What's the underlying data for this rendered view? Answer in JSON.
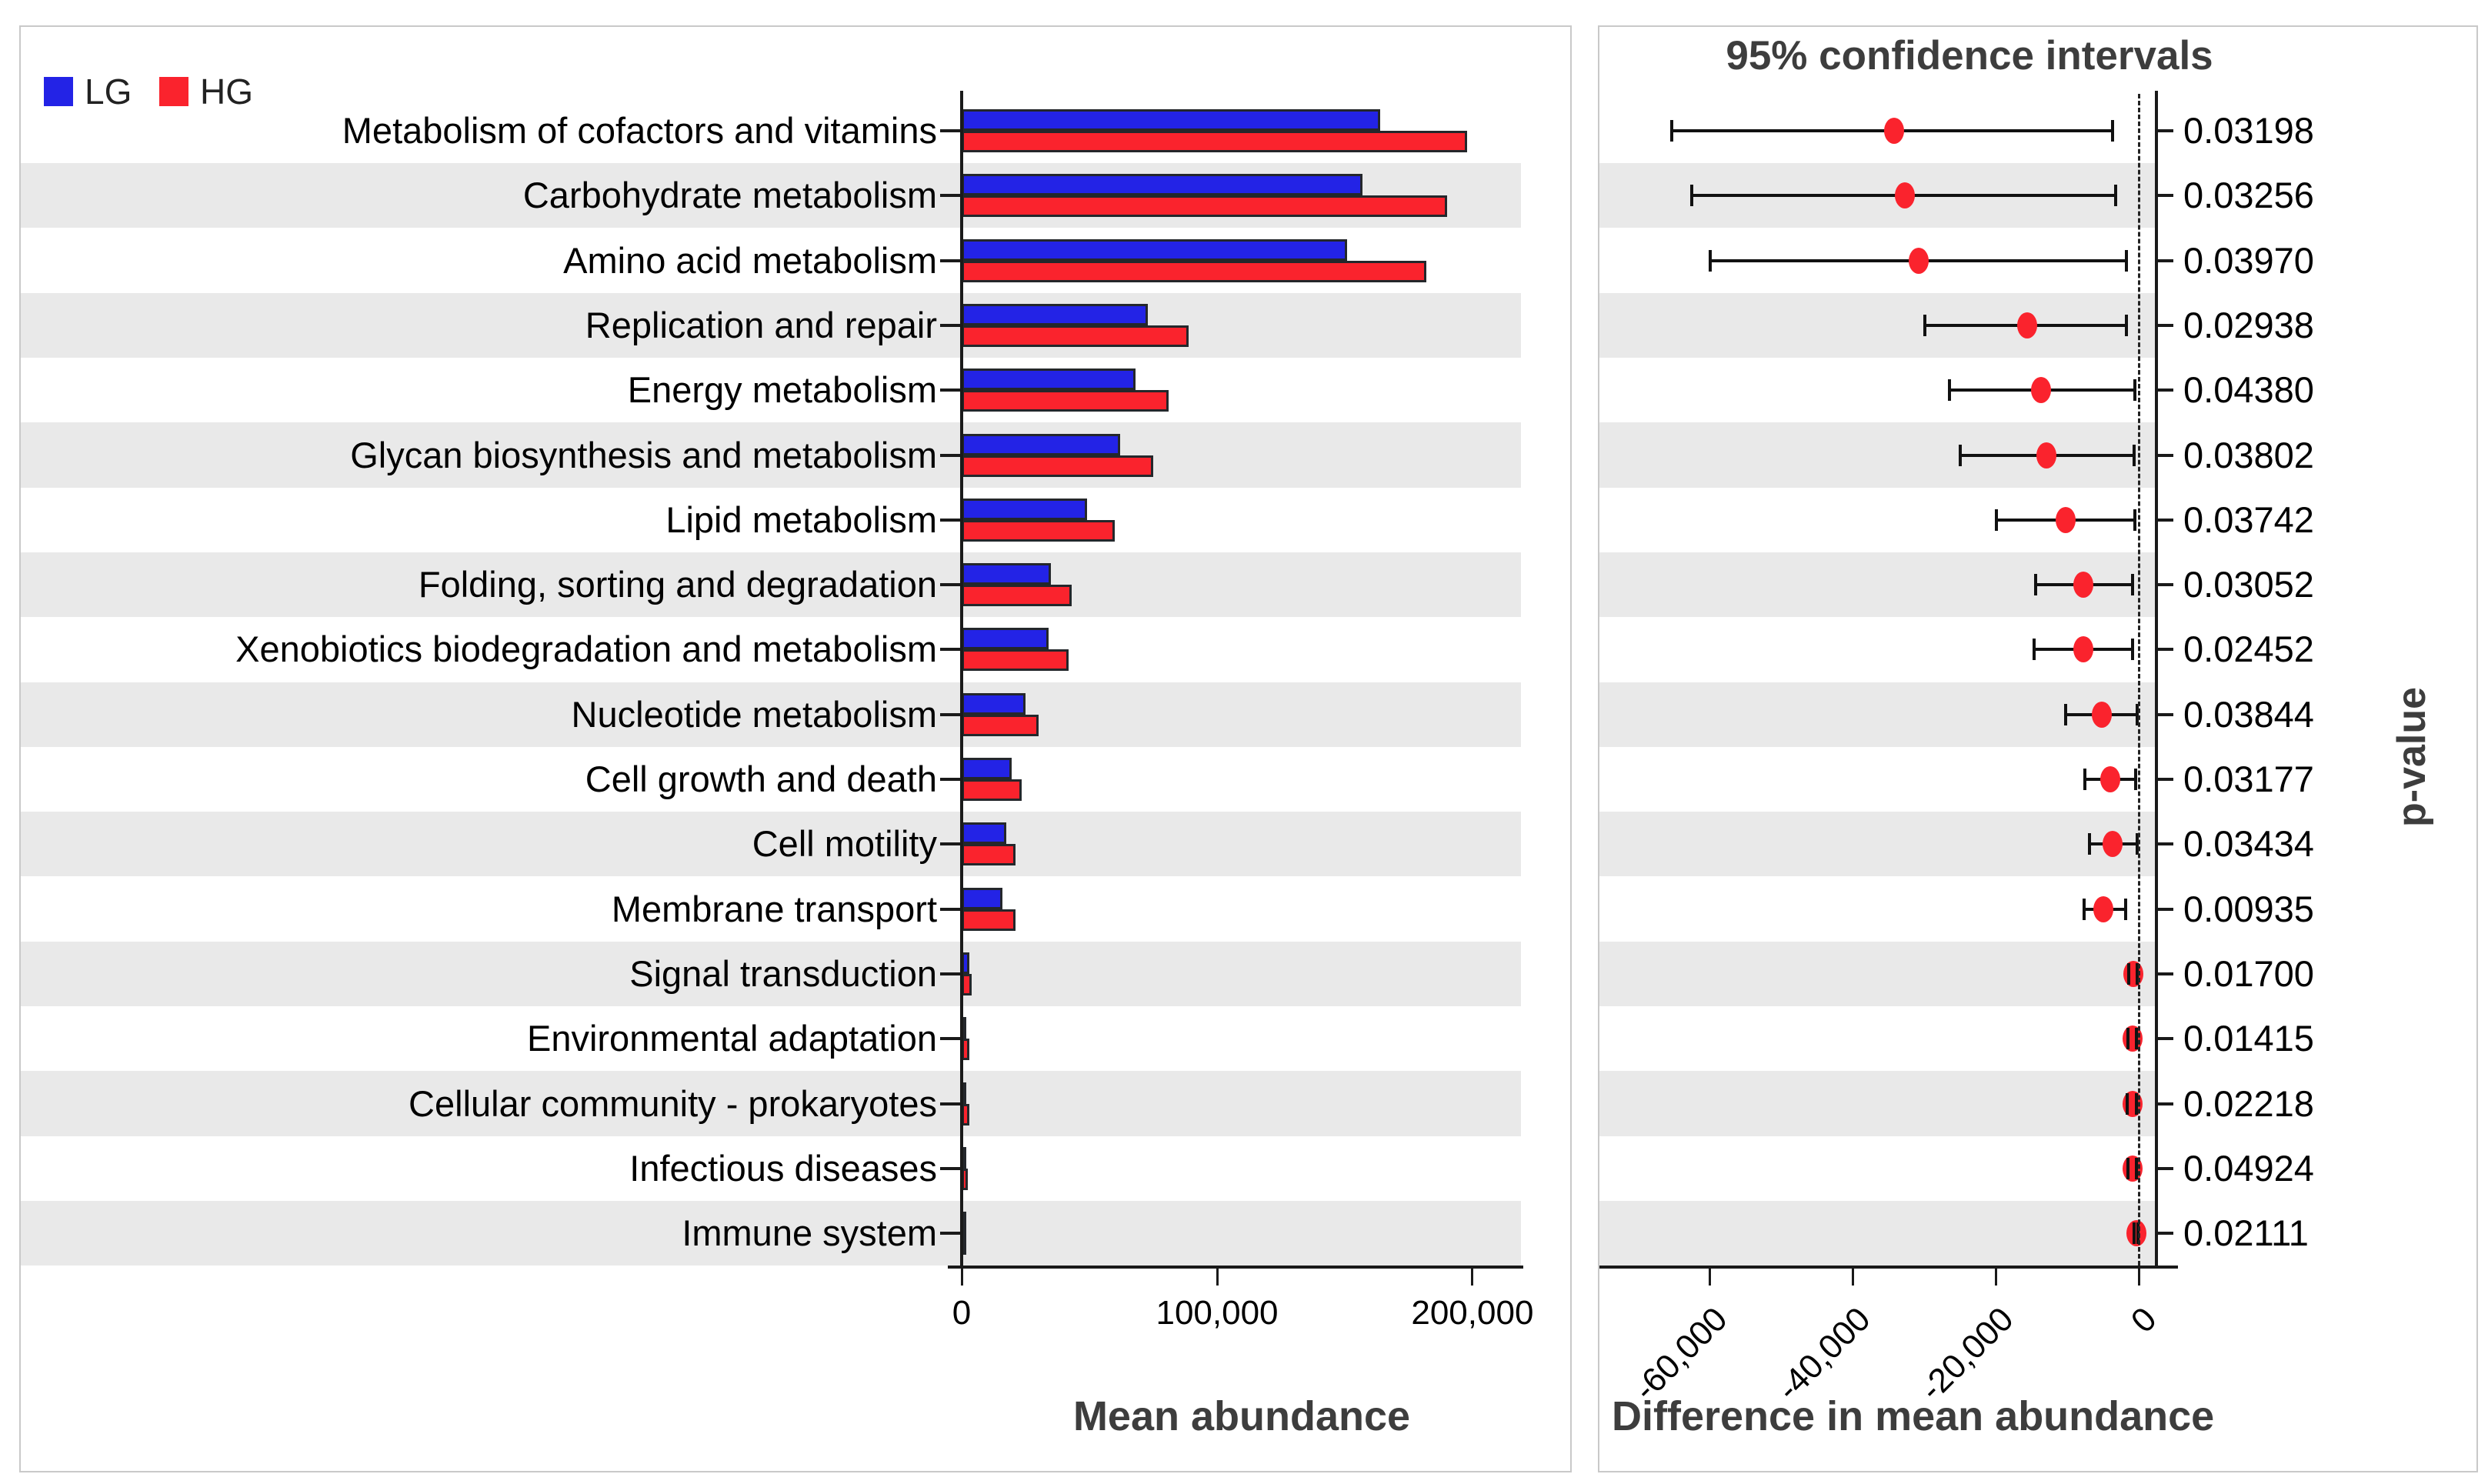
{
  "legend": {
    "lg": "LG",
    "hg": "HG"
  },
  "titles": {
    "right_panel": "95% confidence intervals",
    "left_xlabel": "Mean abundance",
    "right_xlabel": "Difference in mean abundance",
    "right_ylabel": "p-value"
  },
  "colors": {
    "lg": "#2323e6",
    "hg": "#fa232d",
    "stripe": "#e9e9e9",
    "panel_border": "#c9c9c9",
    "axis": "#1a1a1a",
    "title_text": "#3d3d3d"
  },
  "chart_data": {
    "type": [
      "bar",
      "dot-ci"
    ],
    "categories": [
      "Metabolism of cofactors and vitamins",
      "Carbohydrate metabolism",
      "Amino acid metabolism",
      "Replication and repair",
      "Energy metabolism",
      "Glycan biosynthesis and metabolism",
      "Lipid metabolism",
      "Folding, sorting and degradation",
      "Xenobiotics biodegradation and metabolism",
      "Nucleotide metabolism",
      "Cell growth and death",
      "Cell motility",
      "Membrane transport",
      "Signal transduction",
      "Environmental adaptation",
      "Cellular community - prokaryotes",
      "Infectious diseases",
      "Immune system"
    ],
    "left": {
      "type": "bar",
      "xlabel": "Mean abundance",
      "xlim": [
        0,
        219000
      ],
      "xticks": [
        {
          "v": 0,
          "label": "0"
        },
        {
          "v": 100000,
          "label": "100,000"
        },
        {
          "v": 200000,
          "label": "200,000"
        }
      ],
      "series": [
        {
          "name": "LG",
          "color_key": "lg",
          "values": [
            164000,
            157000,
            151000,
            73000,
            68000,
            62000,
            49000,
            35000,
            34000,
            25000,
            19500,
            17500,
            16000,
            2900,
            1800,
            1900,
            1500,
            800
          ]
        },
        {
          "name": "HG",
          "color_key": "hg",
          "values": [
            198000,
            190000,
            182000,
            89000,
            81000,
            75000,
            60000,
            43000,
            42000,
            30000,
            23500,
            21000,
            21000,
            3900,
            2900,
            2900,
            2500,
            1100
          ]
        }
      ]
    },
    "right": {
      "type": "dot-ci",
      "title": "95% confidence intervals",
      "xlabel": "Difference in mean abundance",
      "right_axis_label": "p-value",
      "xlim": [
        -66500,
        2600
      ],
      "zero_line": 0,
      "xticks": [
        {
          "v": -60000,
          "label": "-60,000"
        },
        {
          "v": -40000,
          "label": "-40,000"
        },
        {
          "v": -20000,
          "label": "-20,000"
        },
        {
          "v": 0,
          "label": "0"
        }
      ],
      "points": [
        {
          "diff": -34200,
          "lo": -65300,
          "hi": -3700,
          "p": "0.03198"
        },
        {
          "diff": -32700,
          "lo": -62500,
          "hi": -3200,
          "p": "0.03256"
        },
        {
          "diff": -30800,
          "lo": -59900,
          "hi": -1700,
          "p": "0.03970"
        },
        {
          "diff": -15600,
          "lo": -29900,
          "hi": -1700,
          "p": "0.02938"
        },
        {
          "diff": -13700,
          "lo": -26500,
          "hi": -500,
          "p": "0.04380"
        },
        {
          "diff": -12900,
          "lo": -24900,
          "hi": -700,
          "p": "0.03802"
        },
        {
          "diff": -10200,
          "lo": -19900,
          "hi": -500,
          "p": "0.03742"
        },
        {
          "diff": -7800,
          "lo": -14400,
          "hi": -900,
          "p": "0.03052"
        },
        {
          "diff": -7800,
          "lo": -14600,
          "hi": -900,
          "p": "0.02452"
        },
        {
          "diff": -5200,
          "lo": -10200,
          "hi": -200,
          "p": "0.03844"
        },
        {
          "diff": -4000,
          "lo": -7500,
          "hi": -400,
          "p": "0.03177"
        },
        {
          "diff": -3700,
          "lo": -6900,
          "hi": -200,
          "p": "0.03434"
        },
        {
          "diff": -4900,
          "lo": -7600,
          "hi": -1800,
          "p": "0.00935"
        },
        {
          "diff": -800,
          "lo": -1400,
          "hi": -200,
          "p": "0.01700"
        },
        {
          "diff": -900,
          "lo": -1500,
          "hi": -300,
          "p": "0.01415"
        },
        {
          "diff": -900,
          "lo": -1600,
          "hi": -300,
          "p": "0.02218"
        },
        {
          "diff": -900,
          "lo": -1500,
          "hi": -300,
          "p": "0.04924"
        },
        {
          "diff": -300,
          "lo": -600,
          "hi": -100,
          "p": "0.02111"
        }
      ]
    }
  }
}
